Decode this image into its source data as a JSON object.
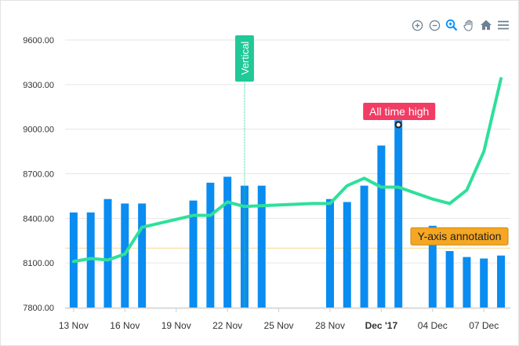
{
  "toolbar": {
    "icons": [
      "zoom-in-icon",
      "zoom-out-icon",
      "selection-zoom-icon",
      "pan-hand-icon",
      "home-icon",
      "menu-icon"
    ]
  },
  "colors": {
    "bar": "#0a8cf0",
    "line": "#2ee09a",
    "grid": "#e6e6e6",
    "axis_text": "#333333",
    "vertical_annotation": "#20c997",
    "point_annotation": "#f23c64",
    "y_annotation_fill": "#f5a623",
    "y_annotation_line": "#f6d98a"
  },
  "chart_data": {
    "type": "bar",
    "ylim": [
      7800,
      9600
    ],
    "yticks": [
      "9600.00",
      "9300.00",
      "9000.00",
      "8700.00",
      "8400.00",
      "8100.00",
      "7800.00"
    ],
    "xticks": [
      {
        "label": "13 Nov",
        "day": 13,
        "bold": false
      },
      {
        "label": "16 Nov",
        "day": 16,
        "bold": false
      },
      {
        "label": "19 Nov",
        "day": 19,
        "bold": false
      },
      {
        "label": "22 Nov",
        "day": 22,
        "bold": false
      },
      {
        "label": "25 Nov",
        "day": 25,
        "bold": false
      },
      {
        "label": "28 Nov",
        "day": 28,
        "bold": false
      },
      {
        "label": "Dec '17",
        "day": 31,
        "bold": true
      },
      {
        "label": "04 Dec",
        "day": 34,
        "bold": false
      },
      {
        "label": "07 Dec",
        "day": 37,
        "bold": false
      }
    ],
    "series": [
      {
        "type": "bar",
        "points": [
          [
            13,
            8440
          ],
          [
            14,
            8440
          ],
          [
            15,
            8530
          ],
          [
            16,
            8500
          ],
          [
            17,
            8500
          ],
          [
            20,
            8520
          ],
          [
            21,
            8640
          ],
          [
            22,
            8680
          ],
          [
            23,
            8620
          ],
          [
            24,
            8620
          ],
          [
            28,
            8530
          ],
          [
            29,
            8510
          ],
          [
            30,
            8620
          ],
          [
            31,
            8890
          ],
          [
            32,
            9060
          ],
          [
            34,
            8350
          ],
          [
            35,
            8180
          ],
          [
            36,
            8140
          ],
          [
            37,
            8130
          ],
          [
            38,
            8150
          ]
        ]
      },
      {
        "type": "line",
        "points": [
          [
            13,
            8110
          ],
          [
            14,
            8130
          ],
          [
            15,
            8120
          ],
          [
            16,
            8160
          ],
          [
            17,
            8340
          ],
          [
            20,
            8420
          ],
          [
            21,
            8420
          ],
          [
            22,
            8510
          ],
          [
            23,
            8480
          ],
          [
            25,
            8490
          ],
          [
            27,
            8500
          ],
          [
            28,
            8500
          ],
          [
            29,
            8620
          ],
          [
            30,
            8670
          ],
          [
            31,
            8610
          ],
          [
            32,
            8610
          ],
          [
            34,
            8530
          ],
          [
            35,
            8500
          ],
          [
            36,
            8590
          ],
          [
            37,
            8850
          ],
          [
            38,
            9340
          ]
        ]
      }
    ],
    "annotations": {
      "vertical": {
        "label": "Vertical",
        "x": 23
      },
      "point": {
        "label": "All time high",
        "x": 32,
        "y": 9030
      },
      "yaxis": {
        "label": "Y-axis annotation",
        "y": 8200
      }
    }
  }
}
